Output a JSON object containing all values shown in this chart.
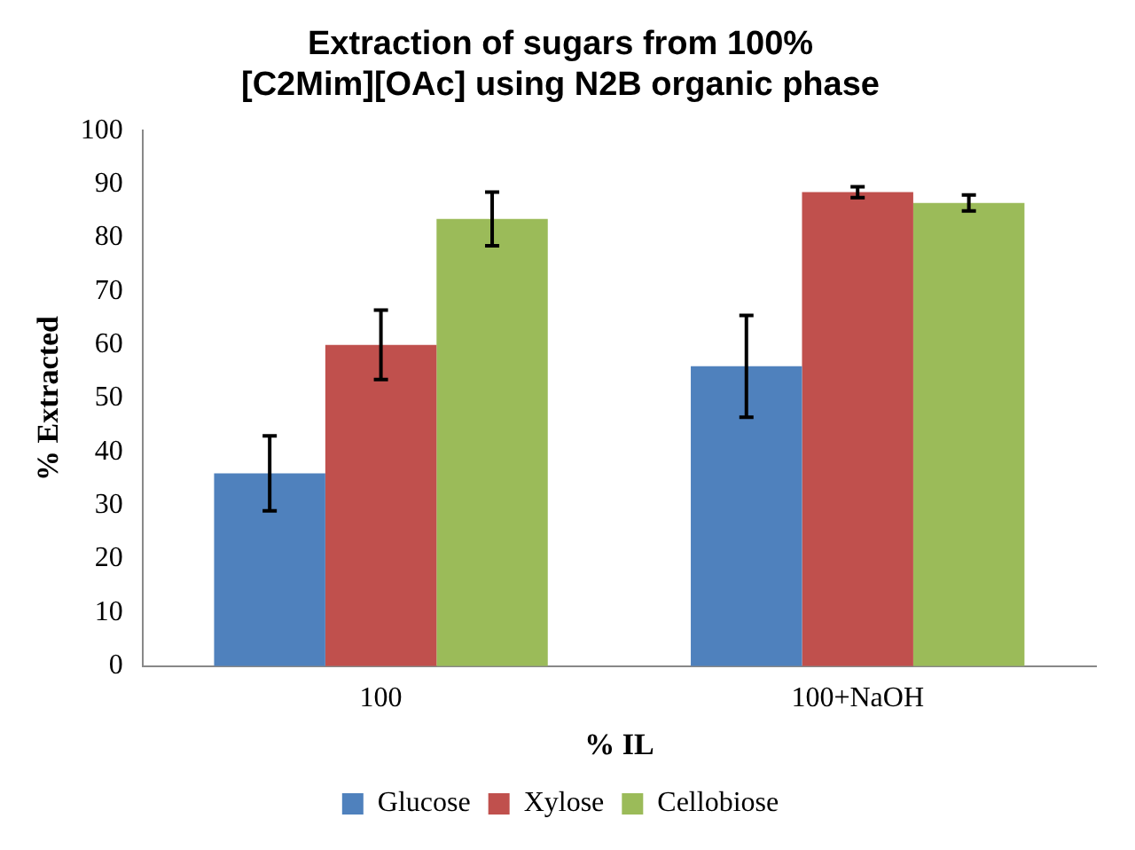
{
  "chart_data": {
    "type": "bar",
    "title": "Extraction of sugars from 100% [C2Mim][OAc] using N2B organic phase",
    "xlabel": "% IL",
    "ylabel": "% Extracted",
    "categories": [
      "100",
      "100+NaOH"
    ],
    "series": [
      {
        "name": "Glucose",
        "color": "#4f81bd",
        "values": [
          36,
          56
        ],
        "errors": [
          7,
          9.5
        ]
      },
      {
        "name": "Xylose",
        "color": "#c0504d",
        "values": [
          60,
          88.5
        ],
        "errors": [
          6.5,
          1
        ]
      },
      {
        "name": "Cellobiose",
        "color": "#9bbb59",
        "values": [
          83.5,
          86.5
        ],
        "errors": [
          5,
          1.5
        ]
      }
    ],
    "ylim": [
      0,
      100
    ],
    "yticks": [
      0,
      10,
      20,
      30,
      40,
      50,
      60,
      70,
      80,
      90,
      100
    ],
    "grid": false,
    "legend": "bottom"
  }
}
